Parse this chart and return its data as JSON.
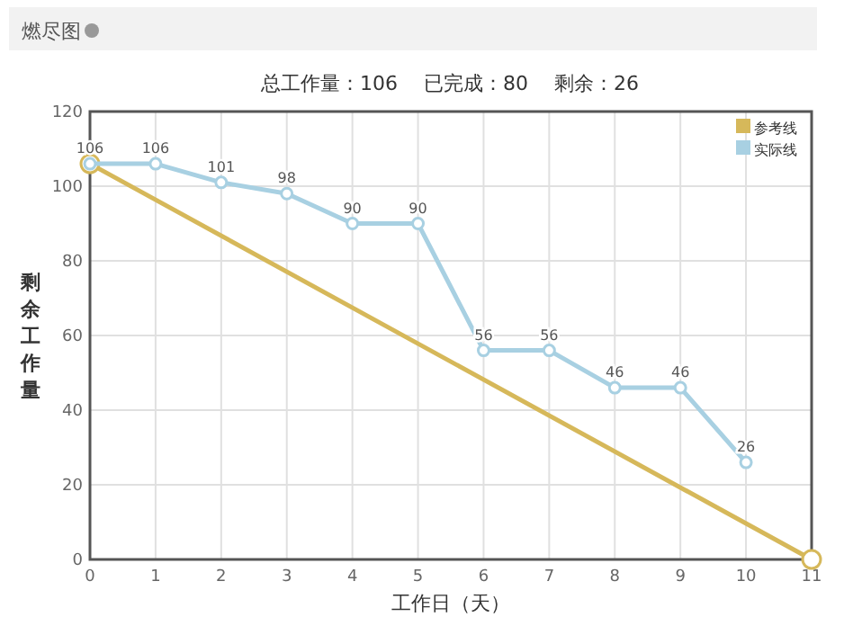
{
  "chart_data": {
    "type": "line",
    "title": "燃尽图",
    "subtitle": "总工作量：106　 已完成：80　 剩余：26",
    "xlabel": "工作日（天）",
    "ylabel": "剩余工作量",
    "xlim": [
      0,
      11
    ],
    "xticks": [
      0,
      1,
      2,
      3,
      4,
      5,
      6,
      7,
      8,
      9,
      10,
      11
    ],
    "ylim": [
      0,
      120
    ],
    "yticks": [
      0,
      20,
      40,
      60,
      80,
      100,
      120
    ],
    "grid": true,
    "legend": "top right",
    "marker": "circle",
    "line_style": "solid",
    "series": [
      {
        "name": "参考线",
        "color": "#d6b85a",
        "x": [
          0,
          11
        ],
        "values": [
          106,
          0
        ]
      },
      {
        "name": "实际线",
        "color": "#a8d0e2",
        "x": [
          0,
          1,
          2,
          3,
          4,
          5,
          6,
          7,
          8,
          9,
          10
        ],
        "values": [
          106,
          106,
          101,
          98,
          90,
          90,
          56,
          56,
          46,
          46,
          26
        ],
        "value_labels": [
          "106",
          "106",
          "101",
          "98",
          "90",
          "90",
          "56",
          "56",
          "46",
          "46",
          "26"
        ]
      }
    ]
  }
}
